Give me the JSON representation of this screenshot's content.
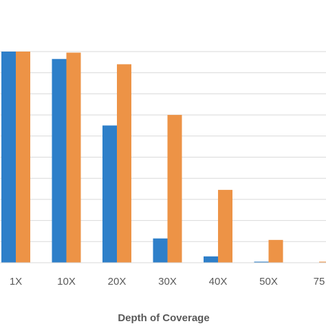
{
  "chart_data": {
    "type": "bar",
    "categories": [
      "1X",
      "10X",
      "20X",
      "30X",
      "40X",
      "50X",
      "75"
    ],
    "series": [
      {
        "values": [
          100,
          96.5,
          65,
          11.5,
          3.0,
          0.5,
          0
        ],
        "color": "#2E7FC9"
      },
      {
        "values": [
          100,
          99.5,
          94,
          70,
          34.5,
          10.8,
          0.5
        ],
        "color": "#ED9346"
      }
    ],
    "xlabel": "Depth of Coverage",
    "ylim": [
      0,
      100
    ],
    "grid": true,
    "gridline_count": 10,
    "legend": "none"
  }
}
